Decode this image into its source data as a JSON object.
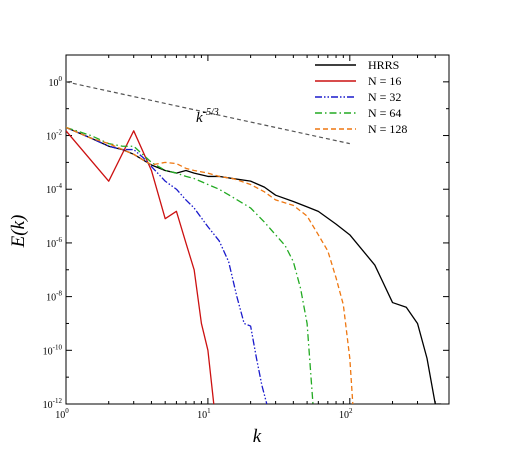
{
  "chart_data": {
    "type": "line",
    "xlabel": "k",
    "ylabel": "E(k)",
    "xscale": "log",
    "yscale": "log",
    "xlim": [
      1,
      500
    ],
    "ylim": [
      1e-12,
      10
    ],
    "grid": false,
    "legend_position": "top-right",
    "x_ticks": [
      {
        "value": 1,
        "base": "10",
        "exp": "0"
      },
      {
        "value": 10,
        "base": "10",
        "exp": "1"
      },
      {
        "value": 100,
        "base": "10",
        "exp": "2"
      }
    ],
    "y_ticks": [
      {
        "value": 1,
        "base": "10",
        "exp": "0"
      },
      {
        "value": 0.01,
        "base": "10",
        "exp": "-2"
      },
      {
        "value": 0.0001,
        "base": "10",
        "exp": "-4"
      },
      {
        "value": 1e-06,
        "base": "10",
        "exp": "-6"
      },
      {
        "value": 1e-08,
        "base": "10",
        "exp": "-8"
      },
      {
        "value": 1e-10,
        "base": "10",
        "exp": "-10"
      },
      {
        "value": 1e-12,
        "base": "10",
        "exp": "-12"
      }
    ],
    "annotation": {
      "base": "k",
      "exp": "-5/3"
    },
    "reference_line": {
      "color": "#555555",
      "x": [
        1,
        100
      ],
      "y": [
        1.0,
        0.005
      ]
    },
    "series": [
      {
        "name": "HRRS",
        "color": "#000000",
        "dash": "solid",
        "x": [
          1,
          1.5,
          2,
          2.5,
          3,
          4,
          5,
          6,
          7,
          8,
          10,
          12,
          15,
          20,
          25,
          30,
          40,
          50,
          60,
          80,
          100,
          150,
          200,
          250,
          300,
          350,
          400,
          440
        ],
        "y": [
          0.02,
          0.008,
          0.004,
          0.003,
          0.002,
          0.0008,
          0.0005,
          0.0004,
          0.0005,
          0.0004,
          0.0003,
          0.0003,
          0.00025,
          0.0002,
          0.00012,
          6e-05,
          3.5e-05,
          2.2e-05,
          1.5e-05,
          5e-06,
          2e-06,
          1.5e-07,
          6e-09,
          4e-09,
          1e-09,
          5e-11,
          1e-12,
          1e-12
        ]
      },
      {
        "name": "N = 16",
        "color": "#cc1111",
        "dash": "solid",
        "x": [
          1,
          2,
          3,
          4,
          5,
          6,
          7,
          8,
          9,
          10,
          11
        ],
        "y": [
          0.015,
          0.0002,
          0.015,
          0.0005,
          8e-06,
          1.5e-05,
          1e-06,
          1e-07,
          1e-09,
          1e-10,
          1e-12
        ]
      },
      {
        "name": "N = 32",
        "color": "#1a1acc",
        "dash": "dashdotdot",
        "x": [
          1,
          1.5,
          2,
          2.5,
          3,
          3.5,
          4,
          5,
          6,
          7,
          8,
          10,
          12,
          14,
          16,
          18,
          20,
          22,
          24,
          26
        ],
        "y": [
          0.02,
          0.008,
          0.004,
          0.003,
          0.003,
          0.0015,
          0.0007,
          0.0002,
          0.0001,
          4e-05,
          2e-05,
          4e-06,
          1.2e-06,
          2e-07,
          1e-08,
          1e-09,
          8e-10,
          5e-11,
          5e-12,
          1e-12
        ]
      },
      {
        "name": "N = 64",
        "color": "#22aa22",
        "dash": "dashdot",
        "x": [
          1,
          1.5,
          2,
          2.5,
          3,
          4,
          5,
          6,
          7,
          8,
          10,
          12,
          15,
          20,
          25,
          30,
          35,
          40,
          45,
          50,
          55
        ],
        "y": [
          0.02,
          0.01,
          0.005,
          0.004,
          0.004,
          0.001,
          0.0005,
          0.0004,
          0.0003,
          0.00025,
          0.00015,
          0.0001,
          5e-05,
          2e-05,
          6e-06,
          2e-06,
          8e-07,
          2e-07,
          2e-08,
          1e-09,
          1e-12
        ]
      },
      {
        "name": "N = 128",
        "color": "#ee7711",
        "dash": "dashed",
        "x": [
          1,
          1.5,
          2,
          3,
          4,
          5,
          6,
          7,
          8,
          10,
          12,
          15,
          20,
          25,
          30,
          40,
          50,
          60,
          70,
          80,
          90,
          100,
          105
        ],
        "y": [
          0.02,
          0.008,
          0.005,
          0.002,
          0.0008,
          0.001,
          0.0009,
          0.0006,
          0.0005,
          0.0004,
          0.0003,
          0.00025,
          0.00015,
          8e-05,
          4e-05,
          2.5e-05,
          1e-05,
          2e-06,
          5e-07,
          5e-08,
          5e-09,
          5e-11,
          1e-12
        ]
      }
    ]
  }
}
